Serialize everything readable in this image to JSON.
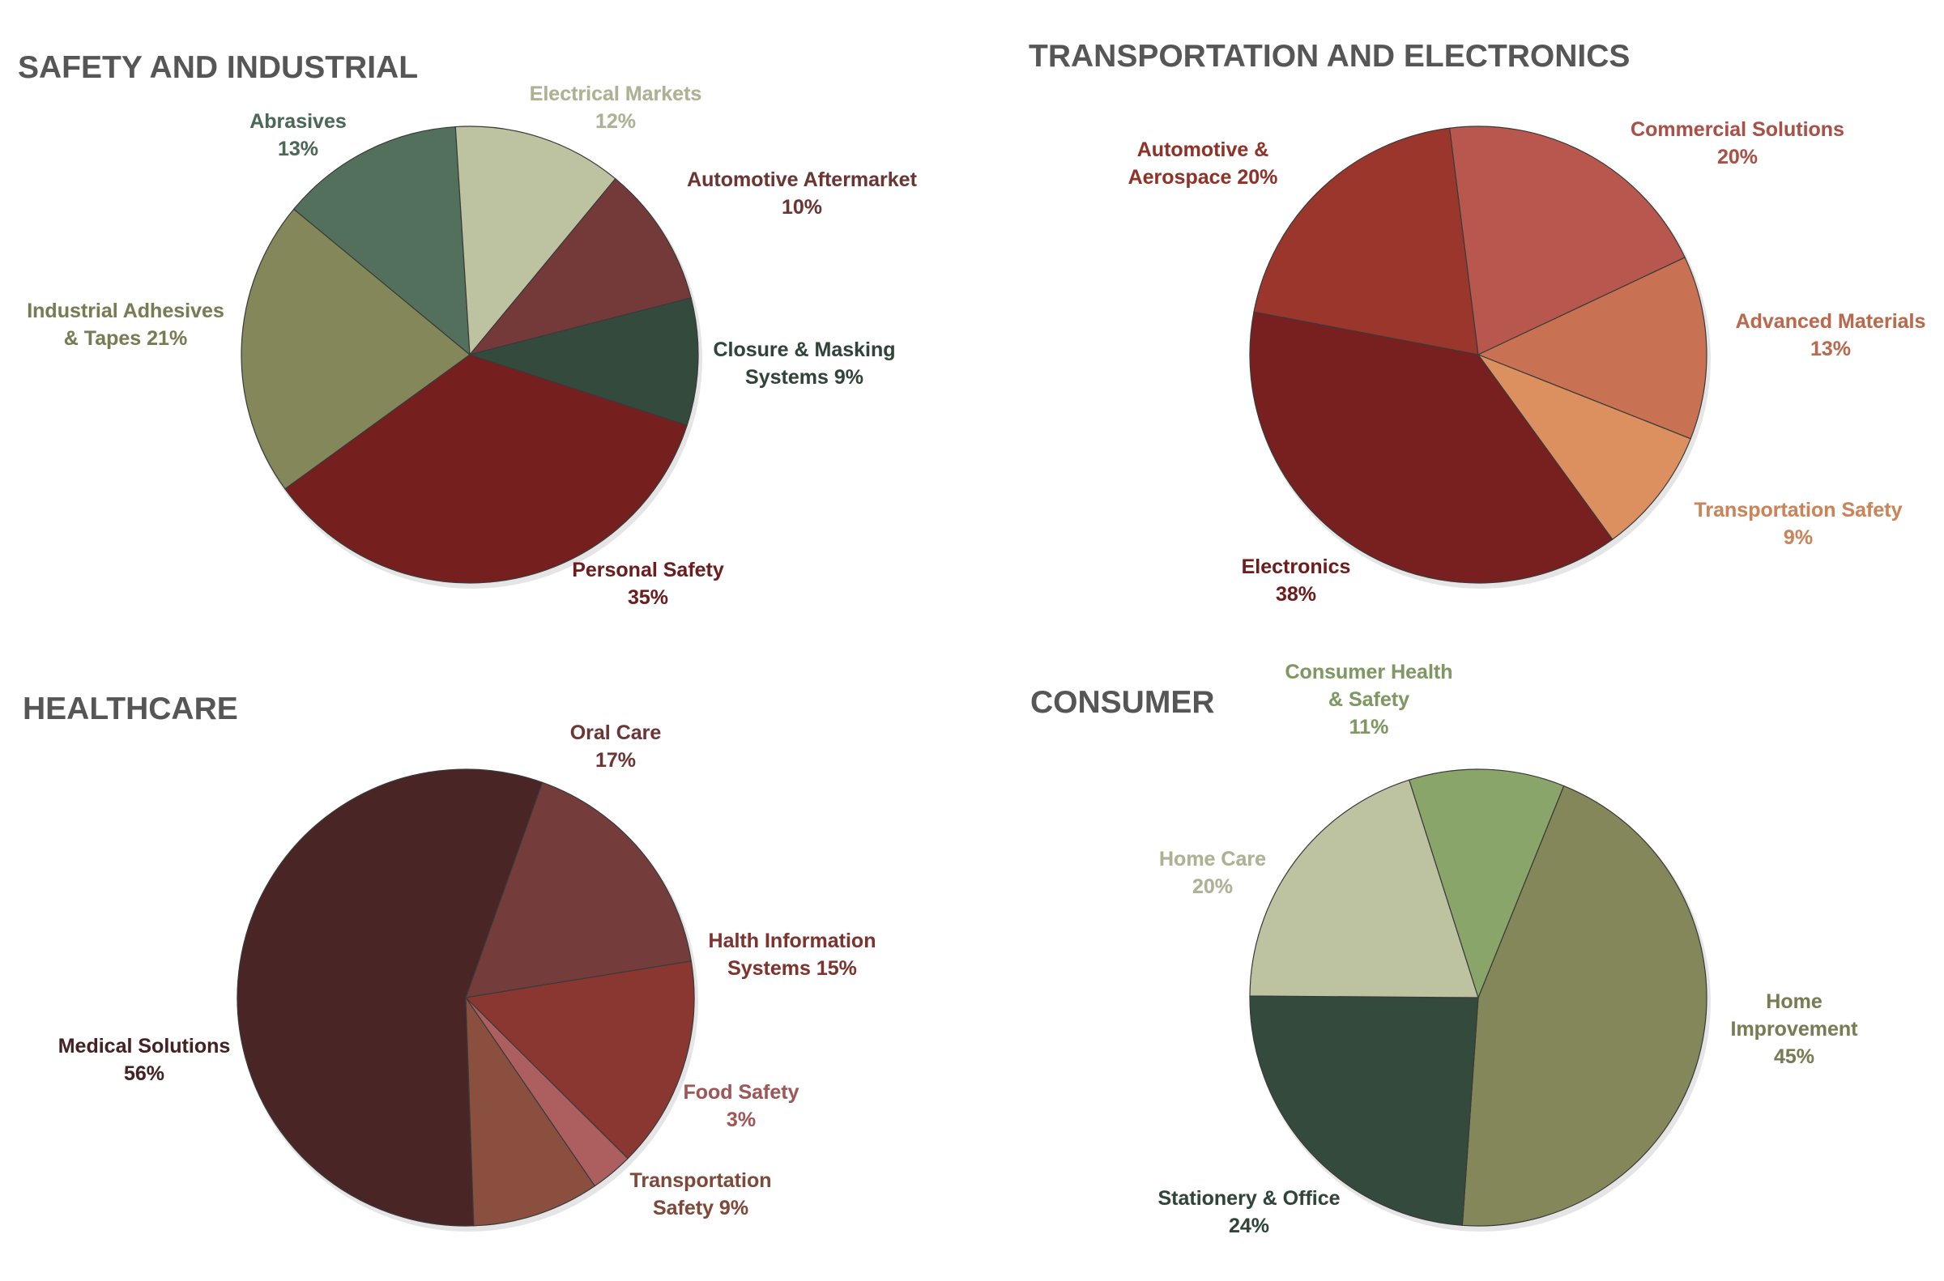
{
  "chart_data": [
    {
      "type": "pie",
      "title": "SAFETY AND INDUSTRIAL",
      "series": [
        {
          "name": "Personal Safety",
          "value": 35,
          "color": "#761f1f",
          "label_lines": [
            "Personal Safety",
            "35%"
          ]
        },
        {
          "name": "Industrial Adhesives & Tapes",
          "value": 21,
          "color": "#84875a",
          "label_lines": [
            "Industrial Adhesives",
            "& Tapes 21%"
          ]
        },
        {
          "name": "Abrasives",
          "value": 13,
          "color": "#52705c",
          "label_lines": [
            "Abrasives",
            "13%"
          ]
        },
        {
          "name": "Electrical Markets",
          "value": 12,
          "color": "#bdc2a0",
          "label_lines": [
            "Electrical Markets",
            "12%"
          ]
        },
        {
          "name": "Automotive Aftermarket",
          "value": 10,
          "color": "#743a39",
          "label_lines": [
            "Automotive Aftermarket",
            "10%"
          ]
        },
        {
          "name": "Closure & Masking Systems",
          "value": 9,
          "color": "#344a3d",
          "label_lines": [
            "Closure & Masking",
            "Systems 9%"
          ]
        }
      ]
    },
    {
      "type": "pie",
      "title": "TRANSPORTATION AND ELECTRONICS",
      "series": [
        {
          "name": "Electronics",
          "value": 38,
          "color": "#781f20",
          "label_lines": [
            "Electronics",
            "38%"
          ]
        },
        {
          "name": "Automotive & Aerospace",
          "value": 20,
          "color": "#9b362c",
          "label_lines": [
            "Automotive &",
            "Aerospace 20%"
          ]
        },
        {
          "name": "Commercial Solutions",
          "value": 20,
          "color": "#b8574d",
          "label_lines": [
            "Commercial Solutions",
            "20%"
          ]
        },
        {
          "name": "Advanced Materials",
          "value": 13,
          "color": "#c97253",
          "label_lines": [
            "Advanced Materials",
            "13%"
          ]
        },
        {
          "name": "Transportation Safety",
          "value": 9,
          "color": "#dc8f5f",
          "label_lines": [
            "Transportation Safety",
            "9%"
          ]
        }
      ]
    },
    {
      "type": "pie",
      "title": "HEALTHCARE",
      "series": [
        {
          "name": "Medical Solutions",
          "value": 56,
          "color": "#4a2526",
          "label_lines": [
            "Medical Solutions",
            "56%"
          ]
        },
        {
          "name": "Oral Care",
          "value": 17,
          "color": "#743c3b",
          "label_lines": [
            "Oral Care",
            "17%"
          ]
        },
        {
          "name": "Halth Information Systems",
          "value": 15,
          "color": "#8a3732",
          "label_lines": [
            "Halth Information",
            "Systems 15%"
          ]
        },
        {
          "name": "Food Safety",
          "value": 3,
          "color": "#ad5e5f",
          "label_lines": [
            "Food Safety",
            "3%"
          ]
        },
        {
          "name": "Transportation Safety",
          "value": 9,
          "color": "#8a4f3e",
          "label_lines": [
            "Transportation",
            "Safety 9%"
          ]
        }
      ]
    },
    {
      "type": "pie",
      "title": "CONSUMER",
      "series": [
        {
          "name": "Home Improvement",
          "value": 45,
          "color": "#84875a",
          "label_lines": [
            "Home",
            "Improvement",
            "45%"
          ]
        },
        {
          "name": "Stationery & Office",
          "value": 24,
          "color": "#344a3d",
          "label_lines": [
            "Stationery & Office",
            "24%"
          ]
        },
        {
          "name": "Home Care",
          "value": 20,
          "color": "#bdc2a0",
          "label_lines": [
            "Home Care",
            "20%"
          ]
        },
        {
          "name": "Consumer Health & Safety",
          "value": 11,
          "color": "#8aa56a",
          "label_lines": [
            "Consumer Health",
            "& Safety",
            "11%"
          ]
        }
      ]
    }
  ]
}
